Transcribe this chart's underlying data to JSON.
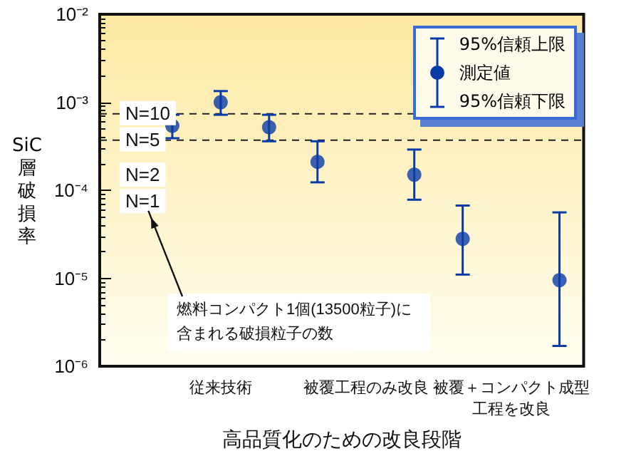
{
  "chart_data": {
    "type": "scatter",
    "xlabel": "高品質化のための改良段階",
    "ylabel": "SiC層破損率",
    "categories": [
      null,
      null,
      "従来技術",
      null,
      null,
      "被覆工程のみ改良",
      null,
      null,
      "被覆＋コンパクト成型工程を改良",
      null
    ],
    "series": [
      {
        "name": "測定値",
        "color": "#0a3ca8",
        "values": [
          null,
          0.00054,
          0.001,
          0.00052,
          0.00021,
          null,
          0.00015,
          2.8e-05,
          null,
          9.5e-06
        ],
        "errors": [
          null,
          [
            0.00039,
            0.00072
          ],
          [
            0.00072,
            0.00134
          ],
          [
            0.00036,
            0.00072
          ],
          [
            0.000123,
            0.00036
          ],
          null,
          [
            7.8e-05,
            0.00029
          ],
          [
            1.1e-05,
            6.7e-05
          ],
          null,
          [
            1.7e-06,
            5.6e-05
          ]
        ]
      }
    ],
    "log": "y",
    "ylim": [
      1e-06,
      0.01
    ],
    "yticks": [
      {
        "value": 1e-06,
        "label": "10⁻⁶"
      },
      {
        "value": 1e-05,
        "label": "10⁻⁵"
      },
      {
        "value": 0.0001,
        "label": "10⁻⁴"
      },
      {
        "value": 0.001,
        "label": "10⁻³"
      },
      {
        "value": 0.01,
        "label": "10⁻²"
      }
    ],
    "ref_lines": [
      {
        "axis": "y",
        "value": 0.00074,
        "line_style": "dashed",
        "color": "#222222"
      },
      {
        "axis": "y",
        "value": 0.00037,
        "line_style": "dashed",
        "color": "#222222"
      }
    ],
    "annotations": [
      {
        "text": "N=10",
        "y": 0.00074
      },
      {
        "text": "N=5",
        "y": 0.00037
      },
      {
        "text": "N=2",
        "y": 0.000148
      },
      {
        "text": "N=1",
        "y": 7.4e-05
      },
      "燃料コンパクト1個(13500粒子)に含まれる破損粒子の数",
      "95%信頼上限",
      "95%信頼下限"
    ],
    "marker": "circle",
    "legend": "top right",
    "grid": false
  }
}
